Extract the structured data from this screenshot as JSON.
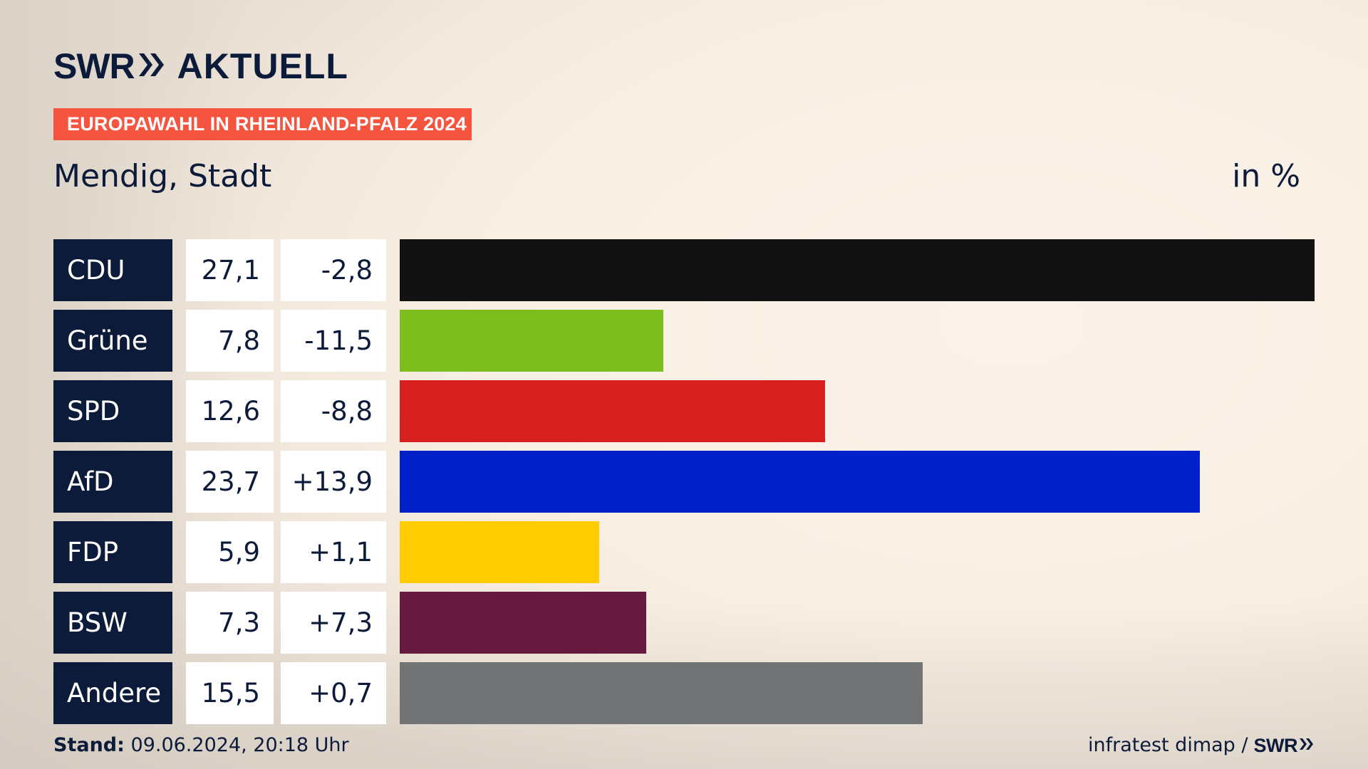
{
  "brand": {
    "logo_swr": "SWR",
    "logo_aktuell": "AKTUELL"
  },
  "header": {
    "badge": "EUROPAWAHL IN RHEINLAND-PFALZ 2024",
    "subtitle": "Mendig, Stadt",
    "unit": "in %"
  },
  "footer": {
    "stand_label": "Stand:",
    "stand_value": "09.06.2024, 20:18 Uhr",
    "source": "infratest dimap /",
    "source_brand": "SWR"
  },
  "colors": {
    "navy": "#0d1b3a",
    "badge": "#f5553f"
  },
  "chart_data": {
    "type": "bar",
    "orientation": "horizontal",
    "title": "Mendig, Stadt",
    "unit": "in %",
    "xlim": [
      0,
      27.1
    ],
    "categories": [
      "CDU",
      "Grüne",
      "SPD",
      "AfD",
      "FDP",
      "BSW",
      "Andere"
    ],
    "values": [
      27.1,
      7.8,
      12.6,
      23.7,
      5.9,
      7.3,
      15.5
    ],
    "value_labels": [
      "27,1",
      "7,8",
      "12,6",
      "23,7",
      "5,9",
      "7,3",
      "15,5"
    ],
    "diff_labels": [
      "-2,8",
      "-11,5",
      "-8,8",
      "+13,9",
      "+1,1",
      "+7,3",
      "+0,7"
    ],
    "diffs": [
      -2.8,
      -11.5,
      -8.8,
      13.9,
      1.1,
      7.3,
      0.7
    ],
    "bar_colors": [
      "#121212",
      "#7dbe1e",
      "#d71f1f",
      "#0020c8",
      "#ffcc00",
      "#661a40",
      "#717375"
    ]
  }
}
